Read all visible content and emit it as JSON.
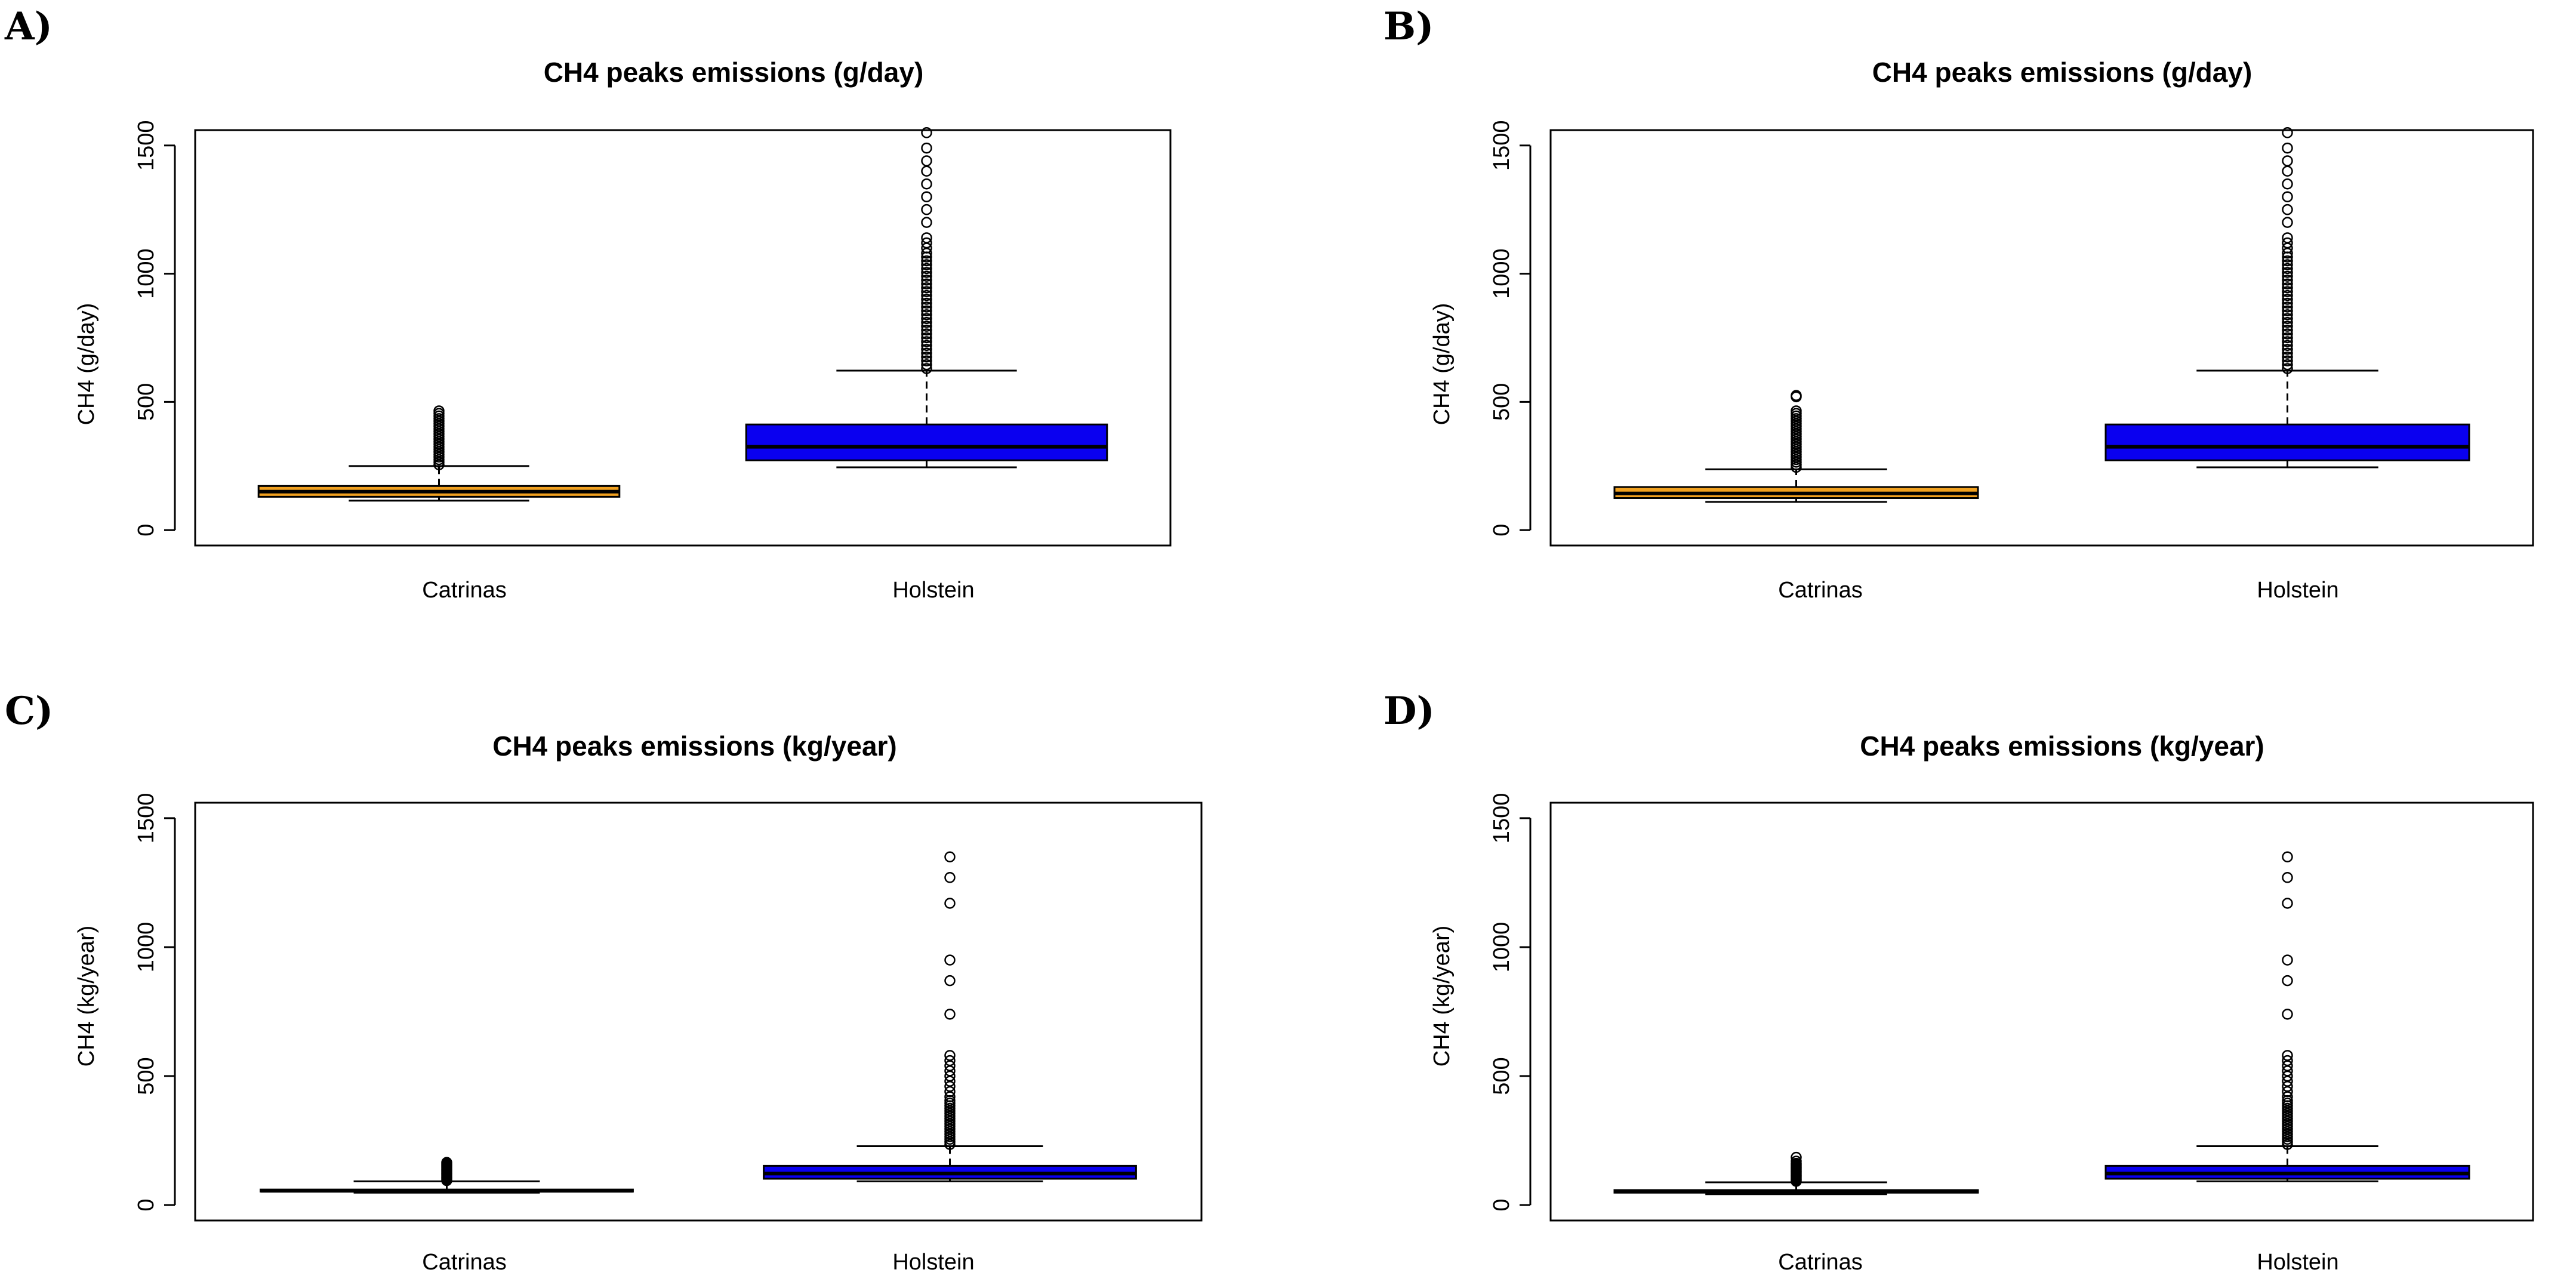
{
  "chart_data": [
    {
      "panel": "A)",
      "type": "boxplot",
      "title": "CH4 peaks emissions (g/day)",
      "xlabel": "",
      "ylabel": "CH4 (g/day)",
      "ylim": [
        -60,
        1560
      ],
      "yticks": [
        0,
        500,
        1000,
        1500
      ],
      "categories": [
        "Catrinas",
        "Holstein"
      ],
      "series": [
        {
          "name": "Catrinas",
          "color": "#F0A020",
          "whisker_low": 115,
          "q1": 130,
          "median": 150,
          "q3": 172,
          "whisker_high": 250,
          "outliers": [
            255,
            265,
            275,
            285,
            295,
            305,
            315,
            325,
            335,
            345,
            355,
            365,
            375,
            385,
            395,
            405,
            415,
            425,
            435,
            445,
            455,
            465
          ]
        },
        {
          "name": "Holstein",
          "color": "#0A00F0",
          "whisker_low": 245,
          "q1": 272,
          "median": 325,
          "q3": 412,
          "whisker_high": 622,
          "outliers": [
            630,
            645,
            660,
            675,
            690,
            705,
            720,
            735,
            750,
            765,
            780,
            795,
            810,
            825,
            840,
            855,
            870,
            885,
            900,
            915,
            930,
            945,
            960,
            975,
            990,
            1005,
            1020,
            1035,
            1050,
            1065,
            1080,
            1100,
            1120,
            1140,
            1200,
            1250,
            1300,
            1350,
            1400,
            1440,
            1490,
            1550
          ]
        }
      ]
    },
    {
      "panel": "B)",
      "type": "boxplot",
      "title": "CH4 peaks emissions (g/day)",
      "xlabel": "",
      "ylabel": "CH4 (g/day)",
      "ylim": [
        -60,
        1560
      ],
      "yticks": [
        0,
        500,
        1000,
        1500
      ],
      "categories": [
        "Catrinas",
        "Holstein"
      ],
      "series": [
        {
          "name": "Catrinas",
          "color": "#F0A020",
          "whisker_low": 110,
          "q1": 125,
          "median": 143,
          "q3": 168,
          "whisker_high": 237,
          "outliers": [
            245,
            255,
            265,
            275,
            285,
            295,
            305,
            315,
            325,
            335,
            345,
            355,
            365,
            375,
            385,
            395,
            405,
            415,
            425,
            435,
            445,
            455,
            465,
            520,
            525
          ]
        },
        {
          "name": "Holstein",
          "color": "#0A00F0",
          "whisker_low": 245,
          "q1": 272,
          "median": 325,
          "q3": 412,
          "whisker_high": 622,
          "outliers": [
            630,
            645,
            660,
            675,
            690,
            705,
            720,
            735,
            750,
            765,
            780,
            795,
            810,
            825,
            840,
            855,
            870,
            885,
            900,
            915,
            930,
            945,
            960,
            975,
            990,
            1005,
            1020,
            1035,
            1050,
            1065,
            1080,
            1100,
            1120,
            1140,
            1200,
            1250,
            1300,
            1350,
            1400,
            1440,
            1490,
            1550
          ]
        }
      ]
    },
    {
      "panel": "C)",
      "type": "boxplot",
      "title": "CH4 peaks emissions (kg/year)",
      "xlabel": "",
      "ylabel": "CH4 (kg/year)",
      "ylim": [
        -60,
        1560
      ],
      "yticks": [
        0,
        500,
        1000,
        1500
      ],
      "categories": [
        "Catrinas",
        "Holstein"
      ],
      "series": [
        {
          "name": "Catrinas",
          "color": "#000000",
          "whisker_low": 48,
          "q1": 52,
          "median": 55,
          "q3": 60,
          "whisker_high": 92,
          "outliers": [
            95,
            100,
            105,
            110,
            115,
            120,
            125,
            130,
            135,
            140,
            145,
            150,
            155,
            160,
            165
          ]
        },
        {
          "name": "Holstein",
          "color": "#0A00F0",
          "whisker_low": 92,
          "q1": 102,
          "median": 122,
          "q3": 152,
          "whisker_high": 228,
          "outliers": [
            235,
            245,
            255,
            265,
            275,
            285,
            295,
            305,
            315,
            325,
            335,
            345,
            355,
            365,
            375,
            385,
            395,
            405,
            420,
            440,
            460,
            480,
            500,
            520,
            540,
            560,
            580,
            740,
            870,
            950,
            1170,
            1270,
            1350
          ]
        }
      ]
    },
    {
      "panel": "D)",
      "type": "boxplot",
      "title": "CH4 peaks emissions (kg/year)",
      "xlabel": "",
      "ylabel": "CH4 (kg/year)",
      "ylim": [
        -60,
        1560
      ],
      "yticks": [
        0,
        500,
        1000,
        1500
      ],
      "categories": [
        "Catrinas",
        "Holstein"
      ],
      "series": [
        {
          "name": "Catrinas",
          "color": "#000000",
          "whisker_low": 42,
          "q1": 48,
          "median": 52,
          "q3": 58,
          "whisker_high": 88,
          "outliers": [
            92,
            97,
            102,
            107,
            112,
            117,
            122,
            127,
            132,
            137,
            142,
            147,
            152,
            157,
            162,
            170,
            185
          ]
        },
        {
          "name": "Holstein",
          "color": "#0A00F0",
          "whisker_low": 92,
          "q1": 102,
          "median": 122,
          "q3": 152,
          "whisker_high": 228,
          "outliers": [
            235,
            245,
            255,
            265,
            275,
            285,
            295,
            305,
            315,
            325,
            335,
            345,
            355,
            365,
            375,
            385,
            395,
            405,
            420,
            440,
            460,
            480,
            500,
            520,
            540,
            560,
            580,
            740,
            870,
            950,
            1170,
            1270,
            1350
          ]
        }
      ]
    }
  ]
}
